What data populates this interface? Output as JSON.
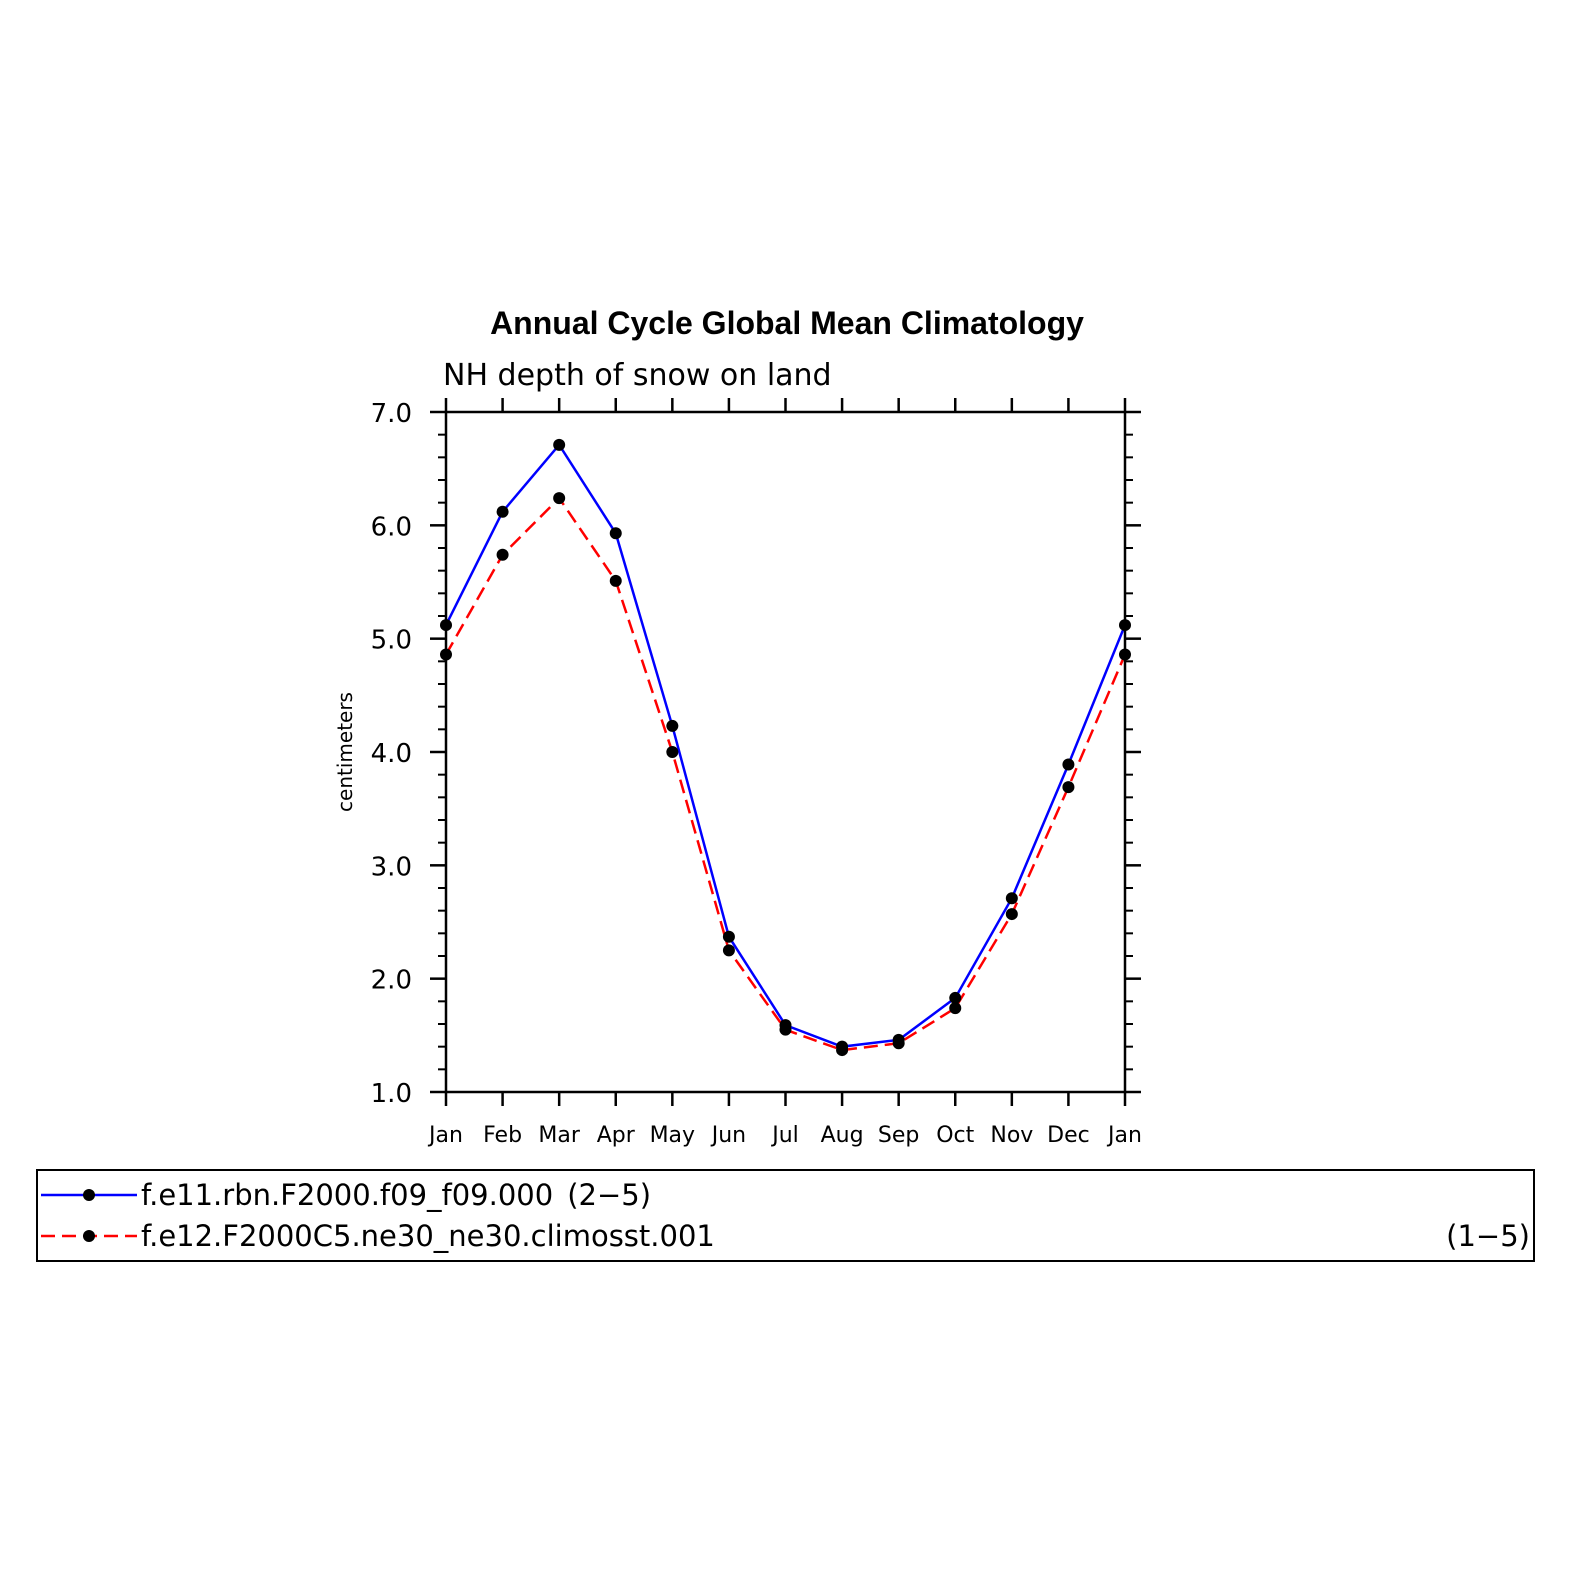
{
  "chart_data": {
    "type": "line",
    "title": "Annual Cycle Global Mean Climatology",
    "subtitle": "NH depth of snow on land",
    "xlabel": "",
    "ylabel": "centimeters",
    "categories": [
      "Jan",
      "Feb",
      "Mar",
      "Apr",
      "May",
      "Jun",
      "Jul",
      "Aug",
      "Sep",
      "Oct",
      "Nov",
      "Dec",
      "Jan"
    ],
    "ylim": [
      1.0,
      7.0
    ],
    "yticks": [
      "1.0",
      "2.0",
      "3.0",
      "4.0",
      "5.0",
      "6.0",
      "7.0"
    ],
    "grid": false,
    "legend_position": "bottom",
    "series": [
      {
        "name": "f.e11.rbn.F2000.f09_f09.000",
        "range_label": "(2−5)",
        "color": "#0000ff",
        "dash": "solid",
        "marker": "filled-circle",
        "values": [
          5.12,
          6.12,
          6.71,
          5.93,
          4.23,
          2.37,
          1.59,
          1.4,
          1.46,
          1.83,
          2.71,
          3.89,
          5.12
        ]
      },
      {
        "name": "f.e12.F2000C5.ne30_ne30.climosst.001",
        "range_label": "(1−5)",
        "color": "#ff0000",
        "dash": "dashed",
        "marker": "filled-circle",
        "values": [
          4.86,
          5.74,
          6.24,
          5.51,
          4.0,
          2.25,
          1.55,
          1.37,
          1.43,
          1.74,
          2.57,
          3.69,
          4.86
        ]
      }
    ]
  }
}
